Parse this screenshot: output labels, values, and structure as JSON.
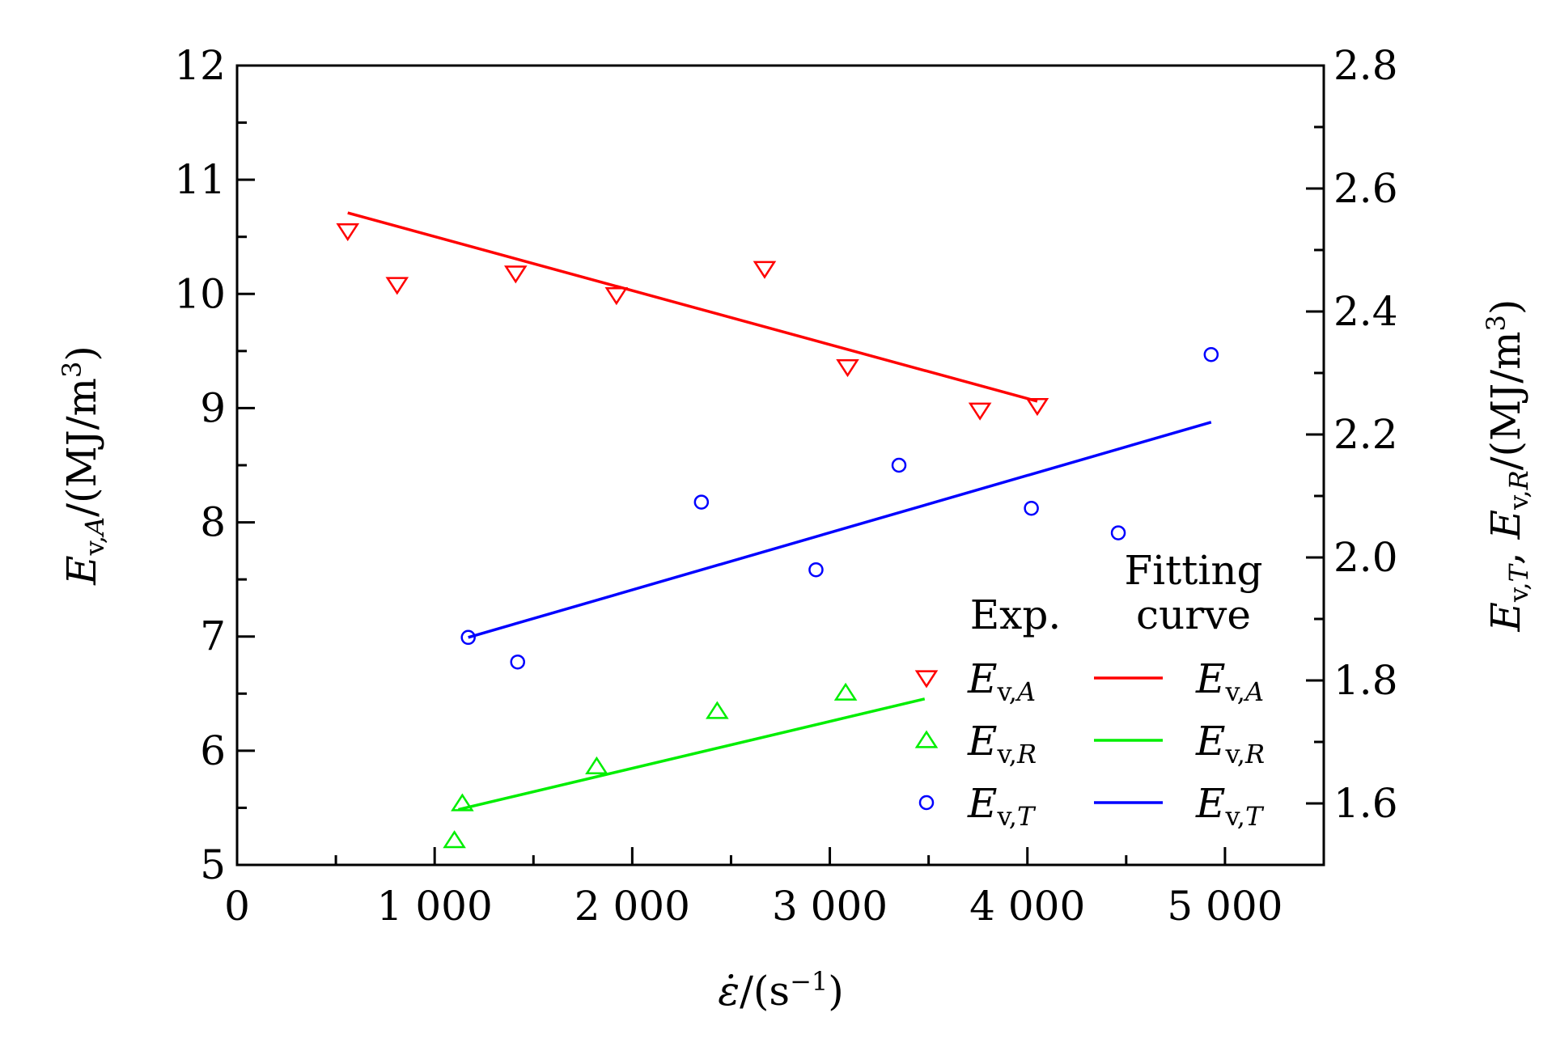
{
  "chart_data": {
    "type": "scatter",
    "xlabel": {
      "symbol": "ε̇",
      "unit_prefix": "/(s",
      "unit_sup": "−1",
      "unit_suffix": ")"
    },
    "ylabel_left": {
      "E": "E",
      "sub": "v,",
      "sub_it": "A",
      "unit": "/(MJ/m",
      "sup": "3",
      "close": ")"
    },
    "ylabel_right": {
      "E1": "E",
      "sub1": "v,",
      "sub1_it": "T",
      "sep": ", ",
      "E2": "E",
      "sub2": "v,",
      "sub2_it": "R",
      "unit": "/(MJ/m",
      "sup": "3",
      "close": ")"
    },
    "xlim": [
      0,
      5500
    ],
    "ylim_left": [
      5,
      12
    ],
    "ylim_right": [
      1.5,
      2.8
    ],
    "x_ticks": [
      0,
      1000,
      2000,
      3000,
      4000,
      5000
    ],
    "x_tick_labels": [
      "0",
      "1 000",
      "2 000",
      "3 000",
      "4 000",
      "5 000"
    ],
    "y_left_ticks": [
      5,
      6,
      7,
      8,
      9,
      10,
      11,
      12
    ],
    "y_left_tick_labels": [
      "5",
      "6",
      "7",
      "8",
      "9",
      "10",
      "11",
      "12"
    ],
    "y_right_ticks": [
      1.6,
      1.8,
      2.0,
      2.2,
      2.4,
      2.6,
      2.8
    ],
    "y_right_tick_labels": [
      "1.6",
      "1.8",
      "2.0",
      "2.2",
      "2.4",
      "2.6",
      "2.8"
    ],
    "grid": false,
    "legend": {
      "placement": "bottom-right",
      "header_exp": "Exp.",
      "header_fit_line1": "Fitting",
      "header_fit_line2": "curve"
    },
    "series": [
      {
        "name": "E_v,A",
        "label_E": "E",
        "label_sub": "v,",
        "label_sub_it": "A",
        "axis": "left",
        "marker": "triangle-down",
        "color": "#ff0000",
        "points": [
          [
            560,
            10.55
          ],
          [
            810,
            10.08
          ],
          [
            1410,
            10.18
          ],
          [
            1920,
            9.99
          ],
          [
            2670,
            10.22
          ],
          [
            3090,
            9.36
          ],
          [
            3760,
            8.98
          ],
          [
            4050,
            9.02
          ]
        ],
        "fit": [
          [
            560,
            10.71
          ],
          [
            4050,
            9.06
          ]
        ]
      },
      {
        "name": "E_v,R",
        "label_E": "E",
        "label_sub": "v,",
        "label_sub_it": "R",
        "axis": "right",
        "marker": "triangle-up",
        "color": "#00ee00",
        "points": [
          [
            1100,
            1.54
          ],
          [
            1140,
            1.6
          ],
          [
            1820,
            1.66
          ],
          [
            2430,
            1.75
          ],
          [
            3080,
            1.78
          ]
        ],
        "fit": [
          [
            1120,
            1.59
          ],
          [
            3480,
            1.77
          ]
        ]
      },
      {
        "name": "E_v,T",
        "label_E": "E",
        "label_sub": "v,",
        "label_sub_it": "T",
        "axis": "right",
        "marker": "circle",
        "color": "#0000ff",
        "points": [
          [
            1170,
            1.87
          ],
          [
            1420,
            1.83
          ],
          [
            2350,
            2.09
          ],
          [
            2930,
            1.98
          ],
          [
            3350,
            2.15
          ],
          [
            4020,
            2.08
          ],
          [
            4460,
            2.04
          ],
          [
            4930,
            2.33
          ]
        ],
        "fit": [
          [
            1170,
            1.87
          ],
          [
            4930,
            2.22
          ]
        ]
      }
    ]
  }
}
